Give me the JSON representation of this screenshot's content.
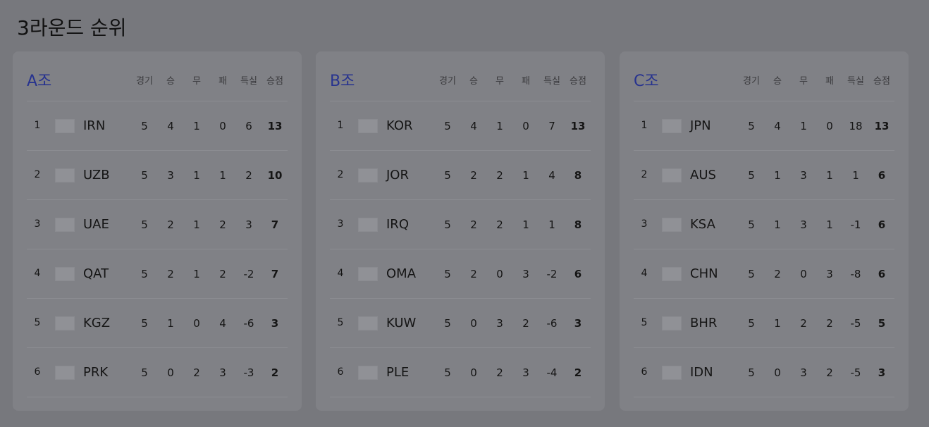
{
  "title": "3라운드 순위",
  "groups": [
    {
      "name": "A조",
      "headers": [
        "경기",
        "승",
        "무",
        "패",
        "득실",
        "승점"
      ],
      "rows": [
        {
          "rank": 1,
          "team": "IRN",
          "stats": [
            5,
            4,
            1,
            0,
            6,
            13
          ]
        },
        {
          "rank": 2,
          "team": "UZB",
          "stats": [
            5,
            3,
            1,
            1,
            2,
            10
          ]
        },
        {
          "rank": 3,
          "team": "UAE",
          "stats": [
            5,
            2,
            1,
            2,
            3,
            7
          ]
        },
        {
          "rank": 4,
          "team": "QAT",
          "stats": [
            5,
            2,
            1,
            2,
            -2,
            7
          ]
        },
        {
          "rank": 5,
          "team": "KGZ",
          "stats": [
            5,
            1,
            0,
            4,
            -6,
            3
          ]
        },
        {
          "rank": 6,
          "team": "PRK",
          "stats": [
            5,
            0,
            2,
            3,
            -3,
            2
          ]
        }
      ]
    },
    {
      "name": "B조",
      "headers": [
        "경기",
        "승",
        "무",
        "패",
        "득실",
        "승점"
      ],
      "rows": [
        {
          "rank": 1,
          "team": "KOR",
          "stats": [
            5,
            4,
            1,
            0,
            7,
            13
          ]
        },
        {
          "rank": 2,
          "team": "JOR",
          "stats": [
            5,
            2,
            2,
            1,
            4,
            8
          ]
        },
        {
          "rank": 3,
          "team": "IRQ",
          "stats": [
            5,
            2,
            2,
            1,
            1,
            8
          ]
        },
        {
          "rank": 4,
          "team": "OMA",
          "stats": [
            5,
            2,
            0,
            3,
            -2,
            6
          ]
        },
        {
          "rank": 5,
          "team": "KUW",
          "stats": [
            5,
            0,
            3,
            2,
            -6,
            3
          ]
        },
        {
          "rank": 6,
          "team": "PLE",
          "stats": [
            5,
            0,
            2,
            3,
            -4,
            2
          ]
        }
      ]
    },
    {
      "name": "C조",
      "headers": [
        "경기",
        "승",
        "무",
        "패",
        "득실",
        "승점"
      ],
      "rows": [
        {
          "rank": 1,
          "team": "JPN",
          "stats": [
            5,
            4,
            1,
            0,
            18,
            13
          ]
        },
        {
          "rank": 2,
          "team": "AUS",
          "stats": [
            5,
            1,
            3,
            1,
            1,
            6
          ]
        },
        {
          "rank": 3,
          "team": "KSA",
          "stats": [
            5,
            1,
            3,
            1,
            -1,
            6
          ]
        },
        {
          "rank": 4,
          "team": "CHN",
          "stats": [
            5,
            2,
            0,
            3,
            -8,
            6
          ]
        },
        {
          "rank": 5,
          "team": "BHR",
          "stats": [
            5,
            1,
            2,
            2,
            -5,
            5
          ]
        },
        {
          "rank": 6,
          "team": "IDN",
          "stats": [
            5,
            0,
            3,
            2,
            -5,
            3
          ]
        }
      ]
    }
  ]
}
